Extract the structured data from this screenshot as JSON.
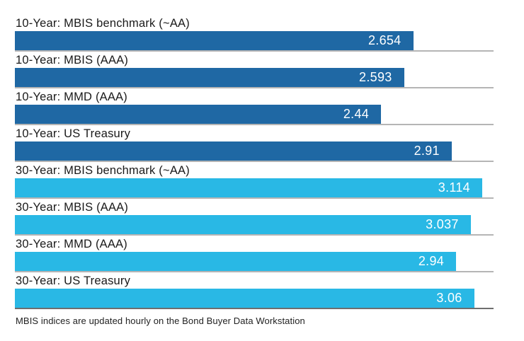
{
  "chart_data": {
    "type": "bar",
    "orientation": "horizontal",
    "title": "",
    "categories": [
      "10-Year: MBIS benchmark (~AA)",
      "10-Year: MBIS (AAA)",
      "10-Year: MMD (AAA)",
      "10-Year: US Treasury",
      "30-Year: MBIS benchmark (~AA)",
      "30-Year: MBIS (AAA)",
      "30-Year: MMD (AAA)",
      "30-Year: US Treasury"
    ],
    "values": [
      2.654,
      2.593,
      2.44,
      2.91,
      3.114,
      3.037,
      2.94,
      3.06
    ],
    "value_labels": [
      "2.654",
      "2.593",
      "2.44",
      "2.91",
      "3.114",
      "3.037",
      "2.94",
      "3.06"
    ],
    "groups": [
      "10-Year",
      "10-Year",
      "10-Year",
      "10-Year",
      "30-Year",
      "30-Year",
      "30-Year",
      "30-Year"
    ],
    "colors": {
      "10-Year": "#1F68A4",
      "30-Year": "#29B8E5"
    },
    "separator_color": "#B5B5B5",
    "axis_line_color": "#6E6E6E",
    "value_text_color": "#FFFFFF",
    "label_text_color": "#1A1A1A",
    "xlim": [
      0,
      3.114
    ],
    "grid": false,
    "legend": "none",
    "footnote": "MBIS indices are updated hourly on the Bond Buyer Data Workstation"
  }
}
